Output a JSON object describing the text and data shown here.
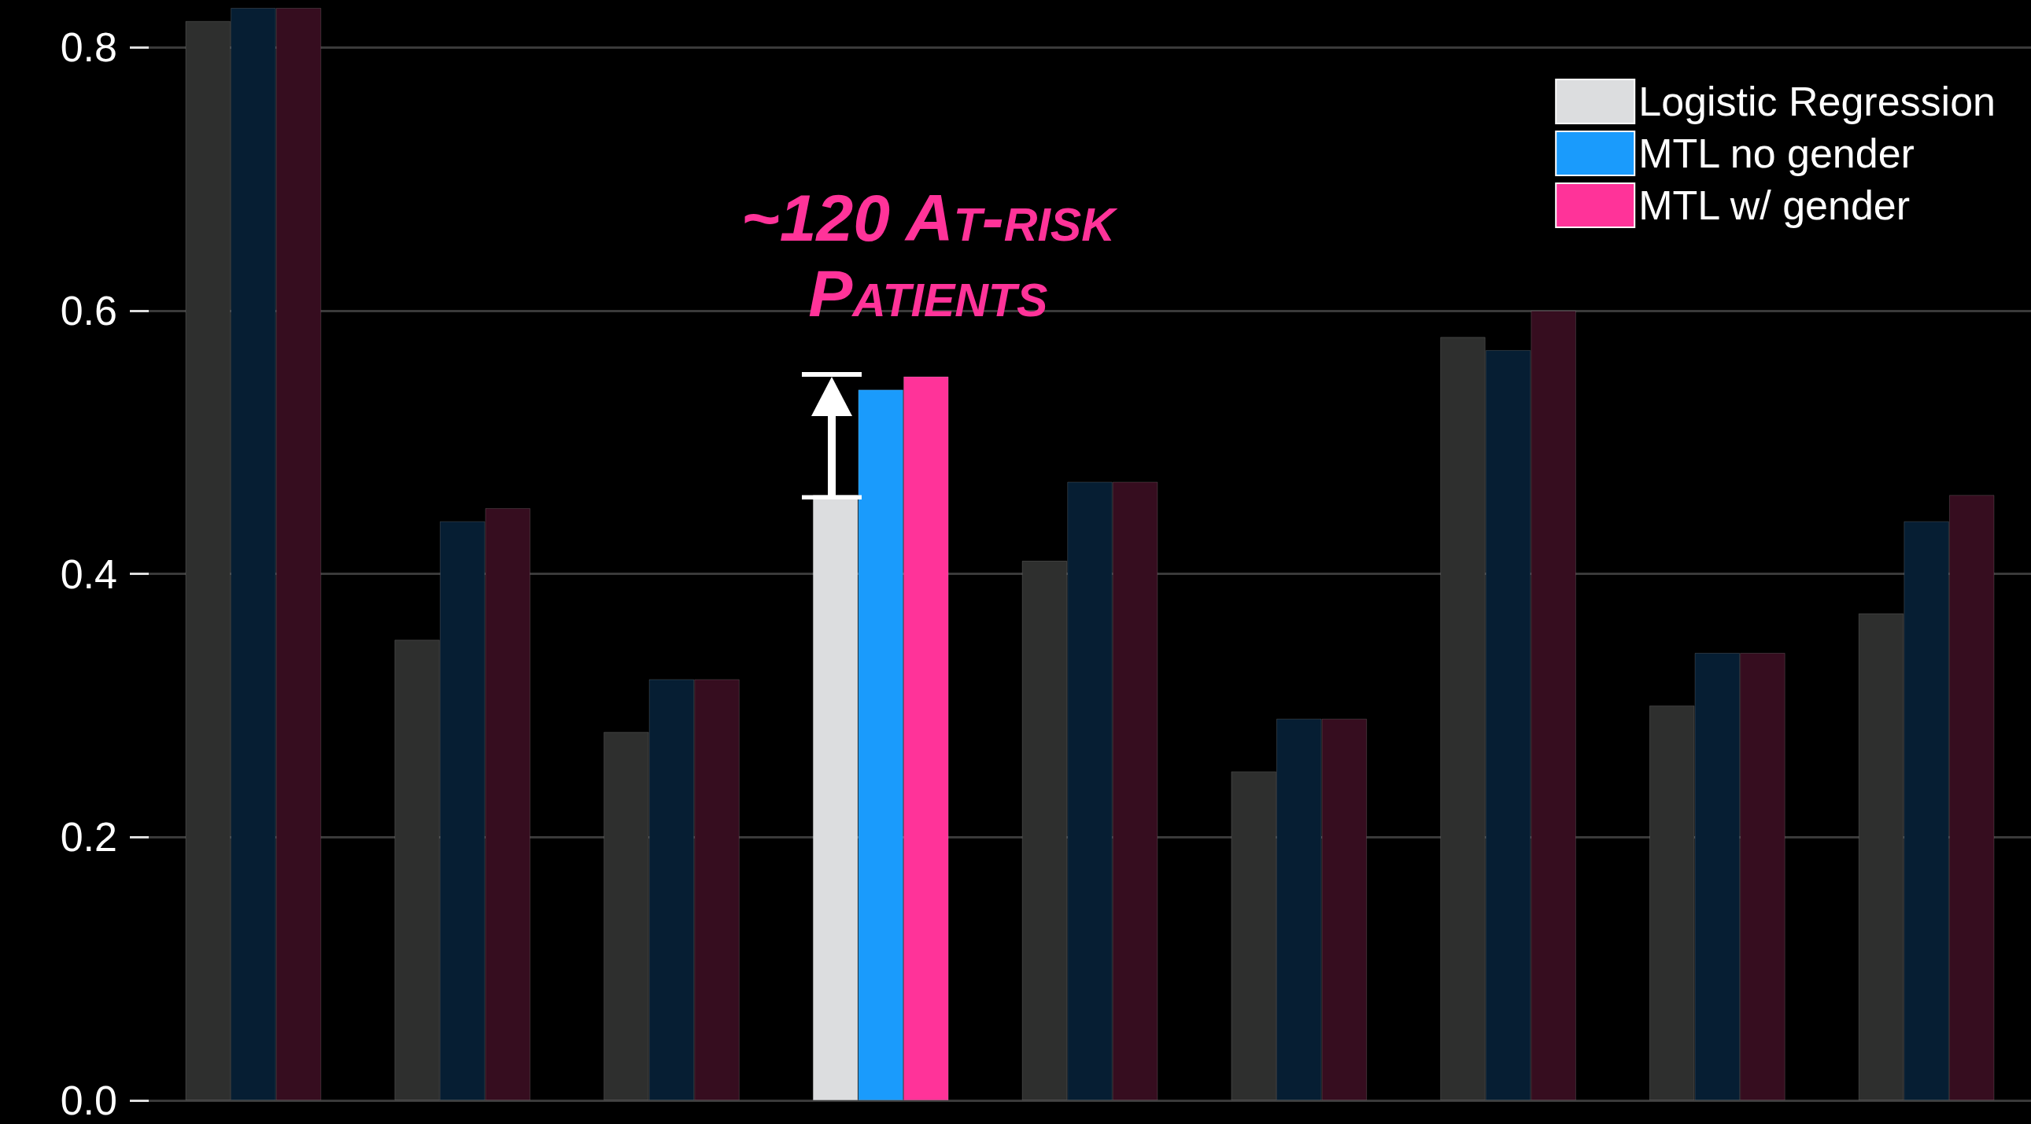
{
  "chart_data": {
    "type": "bar",
    "categories": [
      null,
      null,
      null,
      null,
      null,
      null,
      null,
      null,
      null
    ],
    "series": [
      {
        "name": "Logistic Regression",
        "color": "#dcdddf",
        "colors": [
          "#2e2f2e",
          "#2e2f2e",
          "#2e2f2e",
          "#dcdddf",
          "#2e2f2e",
          "#2e2f2e",
          "#2e2f2e",
          "#2e2f2e",
          "#2e2f2e"
        ],
        "values": [
          0.82,
          0.35,
          0.28,
          0.46,
          0.41,
          0.25,
          0.58,
          0.3,
          0.37
        ]
      },
      {
        "name": "MTL no gender",
        "color": "#1a9bfc",
        "colors": [
          "#061e33",
          "#061e33",
          "#061e33",
          "#1a9bfc",
          "#061e33",
          "#061e33",
          "#061e33",
          "#061e33",
          "#061e33"
        ],
        "values": [
          0.83,
          0.44,
          0.32,
          0.54,
          0.47,
          0.29,
          0.57,
          0.34,
          0.44
        ]
      },
      {
        "name": "MTL w/ gender",
        "color": "#ff3399",
        "colors": [
          "#360d1f",
          "#360d1f",
          "#360d1f",
          "#ff3399",
          "#360d1f",
          "#360d1f",
          "#360d1f",
          "#360d1f",
          "#360d1f"
        ],
        "values": [
          0.83,
          0.45,
          0.32,
          0.55,
          0.47,
          0.29,
          0.6,
          0.34,
          0.46
        ]
      }
    ],
    "ylim": [
      0,
      0.83
    ],
    "yticks": [
      {
        "value": 0,
        "label": "0.0"
      },
      {
        "value": 0.2,
        "label": "0.2"
      },
      {
        "value": 0.4,
        "label": "0.4"
      },
      {
        "value": 0.6,
        "label": "0.6"
      },
      {
        "value": 0.8,
        "label": "0.8"
      }
    ],
    "grid": "y",
    "legend": "top right",
    "annotations": [
      "~120 At-risk Patients"
    ]
  }
}
